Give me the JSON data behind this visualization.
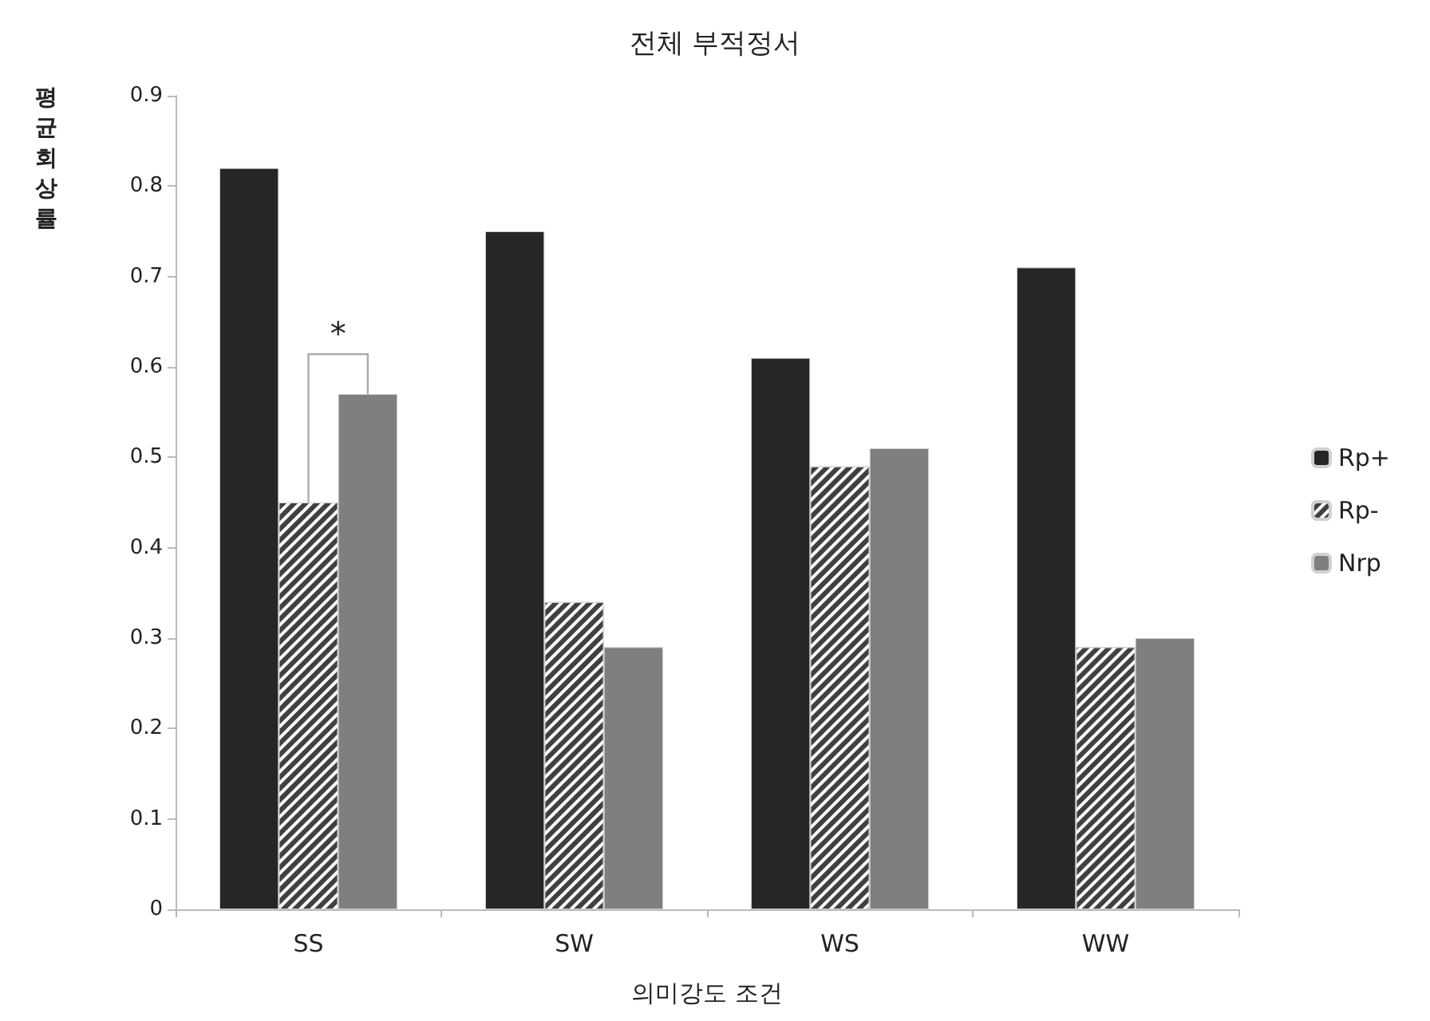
{
  "chart_data": {
    "type": "bar",
    "title": "전체 부적정서",
    "xlabel": "의미강도 조건",
    "ylabel": "평균 회상률",
    "categories": [
      "SS",
      "SW",
      "WS",
      "WW"
    ],
    "series": [
      {
        "name": "Rp+",
        "color": "#262626",
        "values": [
          0.82,
          0.75,
          0.61,
          0.71
        ]
      },
      {
        "name": "Rp-",
        "color": "#404040",
        "values": [
          0.45,
          0.34,
          0.49,
          0.29
        ]
      },
      {
        "name": "Nrp",
        "color": "#7f7f7f",
        "values": [
          0.57,
          0.29,
          0.51,
          0.3
        ]
      }
    ],
    "ylim": [
      0,
      0.9
    ],
    "yticks": [
      0,
      0.1,
      0.2,
      0.3,
      0.4,
      0.5,
      0.6,
      0.7,
      0.8,
      0.9
    ],
    "grid": false,
    "legend": "right",
    "annotations": [
      "*"
    ]
  }
}
